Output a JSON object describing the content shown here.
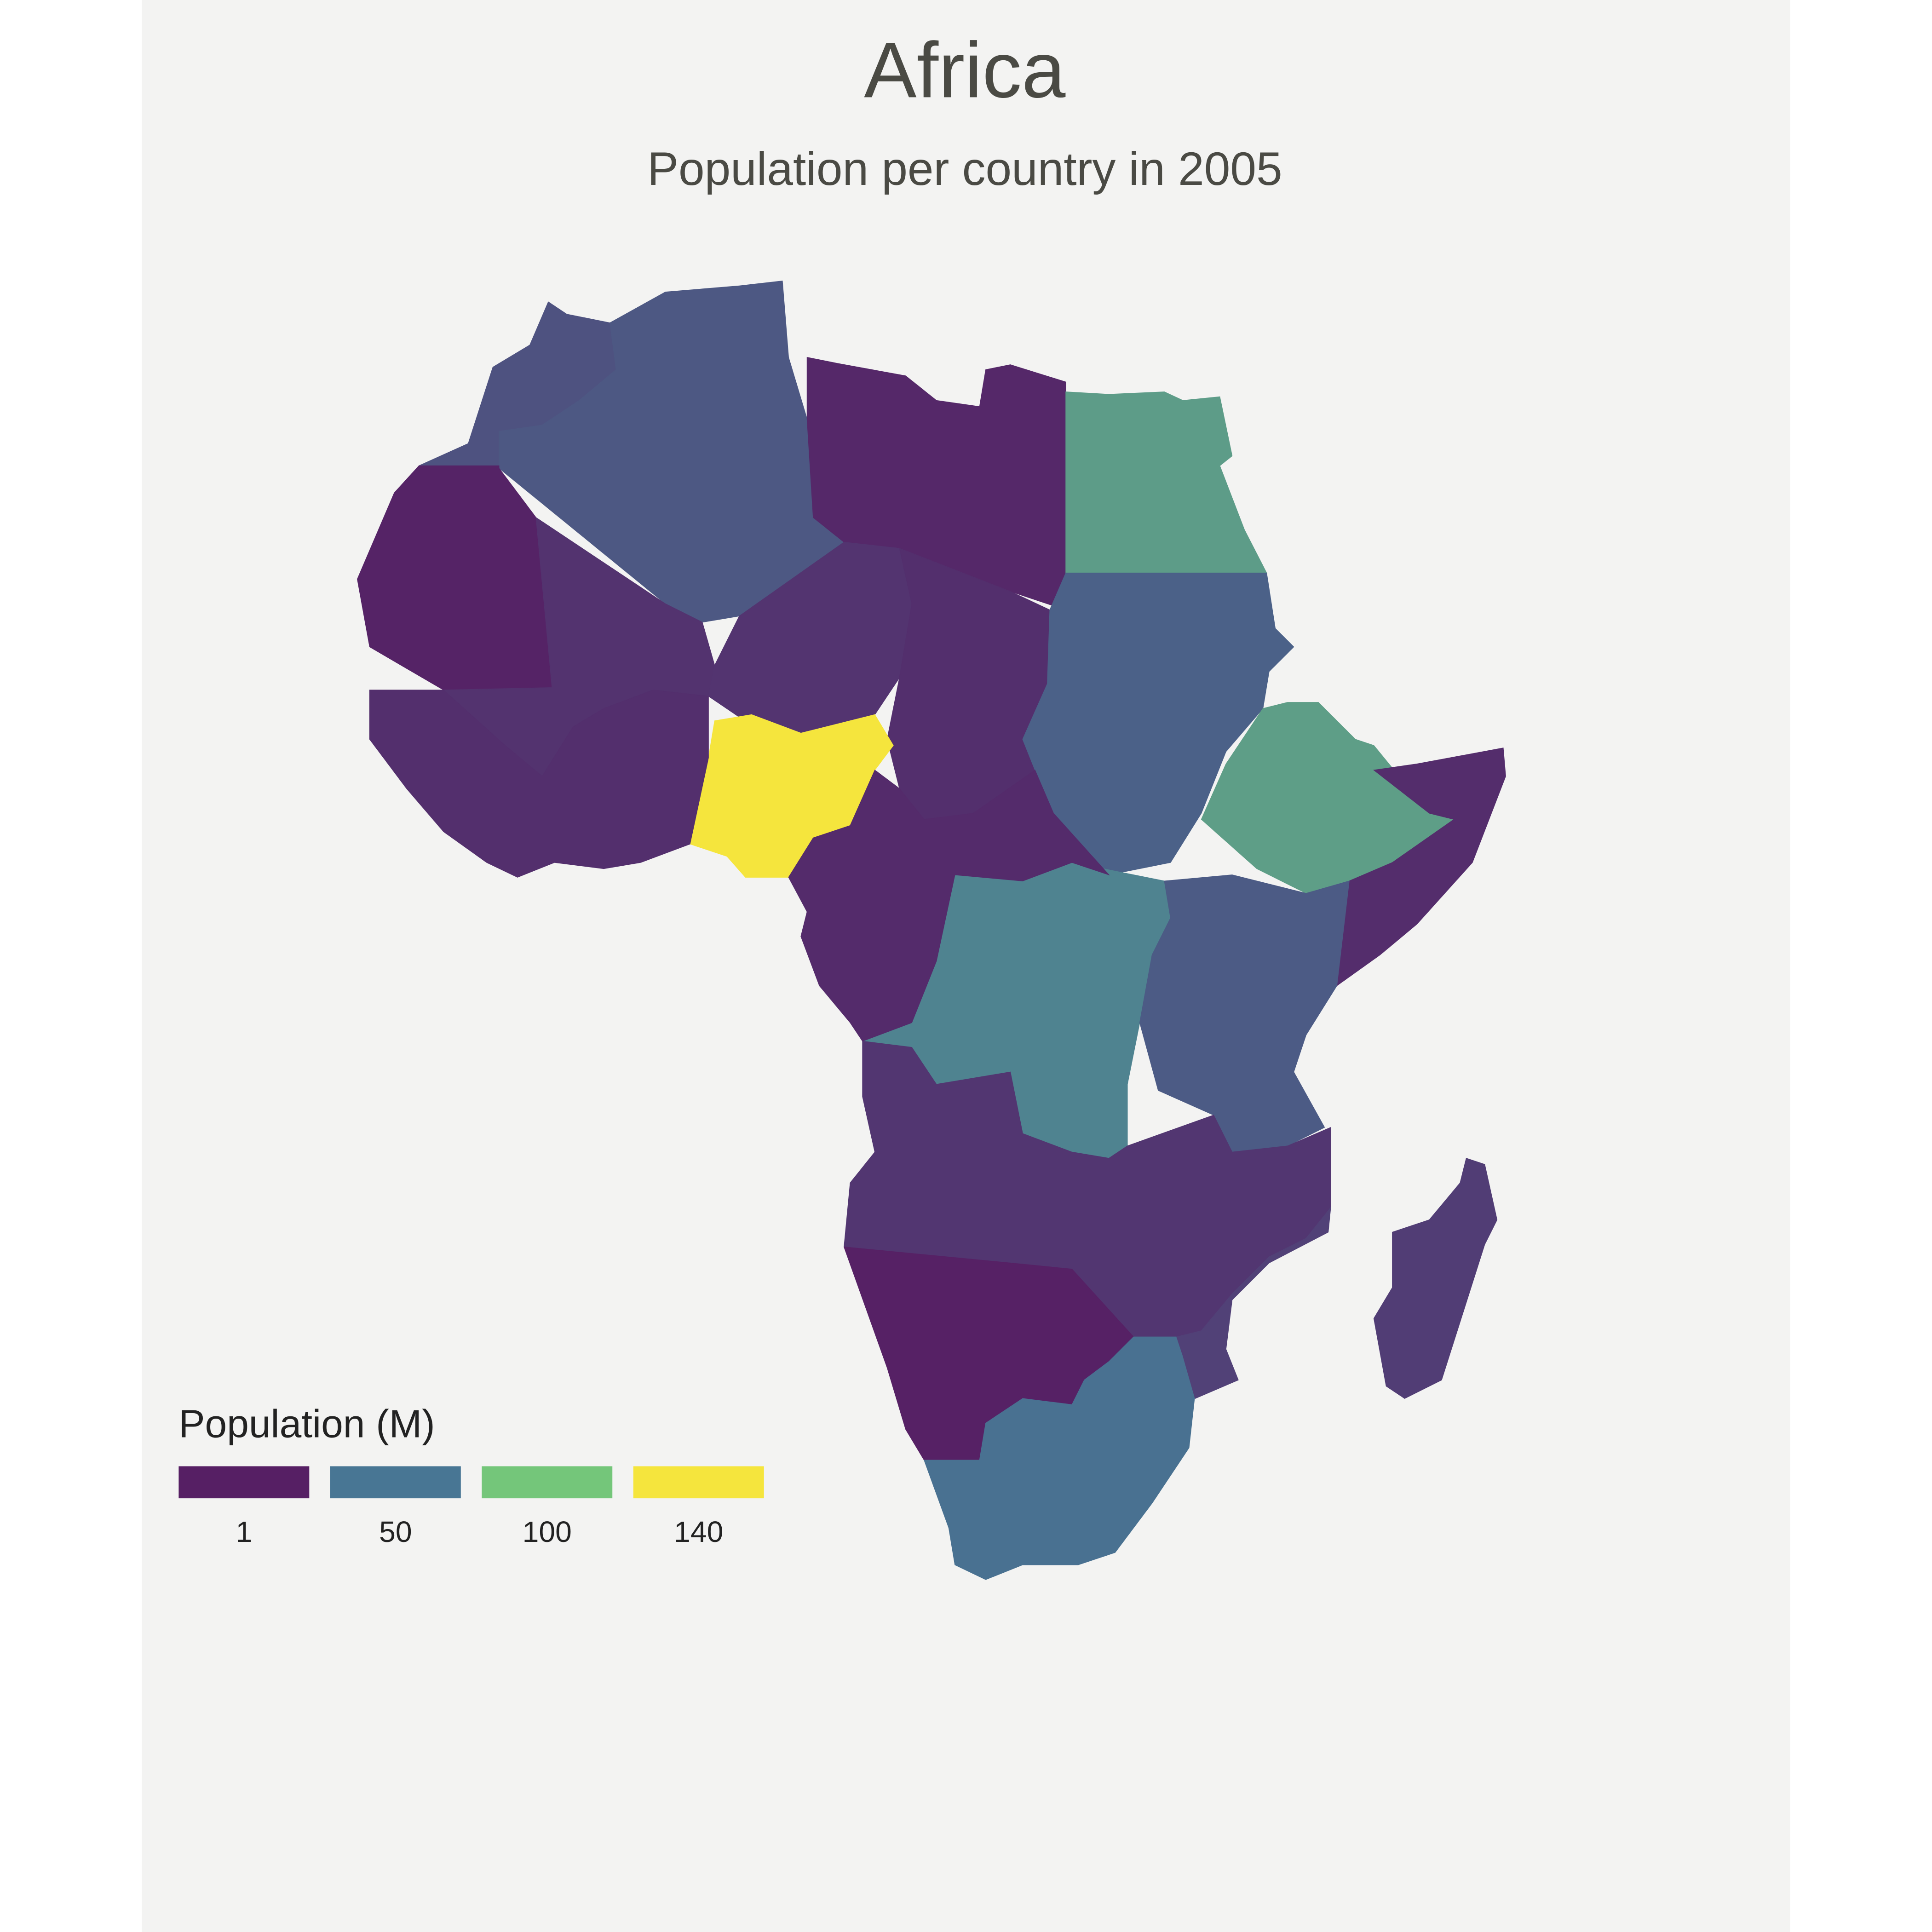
{
  "chart_data": {
    "type": "choropleth",
    "title": "Africa",
    "subtitle": "Population per country in 2005",
    "legend": {
      "title": "Population (M)",
      "breaks": [
        1,
        50,
        100,
        140
      ],
      "colors": [
        "#561f64",
        "#487694",
        "#74c67a",
        "#f5e53d"
      ]
    },
    "values": [
      30,
      33,
      6,
      74,
      3,
      12,
      13,
      10,
      38,
      75,
      9,
      140,
      10,
      58,
      8,
      35,
      14,
      2,
      47,
      18,
      20
    ]
  }
}
